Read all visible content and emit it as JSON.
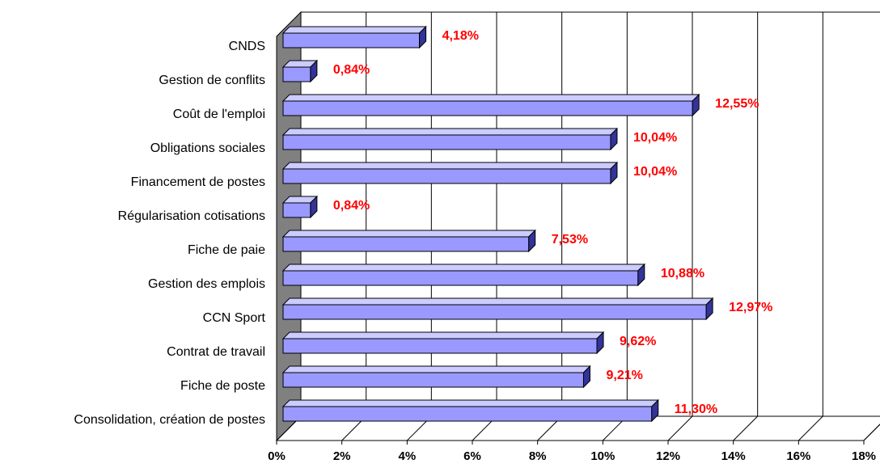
{
  "chart_data": {
    "type": "bar3d",
    "categories": [
      "CNDS",
      "Gestion de conflits",
      "Coût de l'emploi",
      "Obligations sociales",
      "Financement de postes",
      "Régularisation cotisations",
      "Fiche de paie",
      "Gestion des emplois",
      "CCN Sport",
      "Contrat de travail",
      "Fiche de poste",
      "Consolidation, création de postes"
    ],
    "values": [
      4.18,
      0.84,
      12.55,
      10.04,
      10.04,
      0.84,
      7.53,
      10.88,
      12.97,
      9.62,
      9.21,
      11.3
    ],
    "value_labels": [
      "4,18%",
      "0,84%",
      "12,55%",
      "10,04%",
      "10,04%",
      "0,84%",
      "7,53%",
      "10,88%",
      "12,97%",
      "9,62%",
      "9,21%",
      "11,30%"
    ],
    "color": "#9999ff",
    "xlim": [
      0,
      18
    ],
    "xticks": [
      {
        "value": 0,
        "label": "0%"
      },
      {
        "value": 2,
        "label": "2%"
      },
      {
        "value": 4,
        "label": "4%"
      },
      {
        "value": 6,
        "label": "6%"
      },
      {
        "value": 8,
        "label": "8%"
      },
      {
        "value": 10,
        "label": "10%"
      },
      {
        "value": 12,
        "label": "12%"
      },
      {
        "value": 14,
        "label": "14%"
      },
      {
        "value": 16,
        "label": "16%"
      },
      {
        "value": 18,
        "label": "18%"
      }
    ],
    "grid": true
  }
}
